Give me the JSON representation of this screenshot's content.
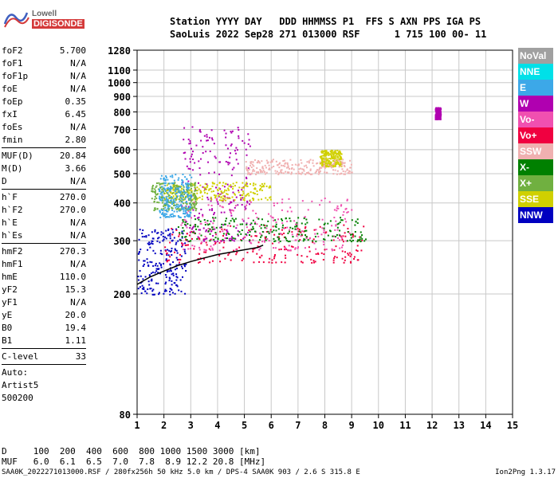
{
  "logo": {
    "line1": "Lowell",
    "line2": "DIGISONDE"
  },
  "header": {
    "row1": "Station YYYY DAY   DDD HHMMSS P1  FFS S AXN PPS IGA PS",
    "row2": "SaoLuis 2022 Sep28 271 013000 RSF      1 715 100 00- 11"
  },
  "params": {
    "group1": [
      {
        "k": "foF2",
        "v": "5.700"
      },
      {
        "k": "foF1",
        "v": "N/A"
      },
      {
        "k": "foF1p",
        "v": "N/A"
      },
      {
        "k": "foE",
        "v": "N/A"
      },
      {
        "k": "foEp",
        "v": "0.35"
      },
      {
        "k": "fxI",
        "v": "6.45"
      },
      {
        "k": "foEs",
        "v": "N/A"
      },
      {
        "k": "fmin",
        "v": "2.80"
      }
    ],
    "group2": [
      {
        "k": "MUF(D)",
        "v": "20.84"
      },
      {
        "k": "M(D)",
        "v": "3.66"
      },
      {
        "k": "D",
        "v": "N/A"
      }
    ],
    "group3": [
      {
        "k": "h`F",
        "v": "270.0"
      },
      {
        "k": "h`F2",
        "v": "270.0"
      },
      {
        "k": "h`E",
        "v": "N/A"
      },
      {
        "k": "h`Es",
        "v": "N/A"
      }
    ],
    "group4": [
      {
        "k": "hmF2",
        "v": "270.3"
      },
      {
        "k": "hmF1",
        "v": "N/A"
      },
      {
        "k": "hmE",
        "v": "110.0"
      },
      {
        "k": "yF2",
        "v": "15.3"
      },
      {
        "k": "yF1",
        "v": "N/A"
      },
      {
        "k": "yE",
        "v": "20.0"
      },
      {
        "k": "B0",
        "v": "19.4"
      },
      {
        "k": "B1",
        "v": "1.11"
      }
    ],
    "group5": [
      {
        "k": "C-level",
        "v": "33"
      }
    ],
    "auto": [
      "Auto:",
      "Artist5",
      "500200"
    ]
  },
  "legend": [
    {
      "label": "NoVal",
      "color": "#a0a0a0"
    },
    {
      "label": "NNE",
      "color": "#00e0e8"
    },
    {
      "label": "E",
      "color": "#3ca8e8"
    },
    {
      "label": "W",
      "color": "#b000b0"
    },
    {
      "label": "Vo-",
      "color": "#f050b0"
    },
    {
      "label": "Vo+",
      "color": "#f00040"
    },
    {
      "label": "SSW",
      "color": "#f0b0b0"
    },
    {
      "label": "X-",
      "color": "#008000"
    },
    {
      "label": "X+",
      "color": "#70b040"
    },
    {
      "label": "SSE",
      "color": "#d0d000"
    },
    {
      "label": "NNW",
      "color": "#0000c0"
    }
  ],
  "bottom": {
    "d_line": "D     100  200  400  600  800 1000 1500 3000 [km]",
    "muf_line": "MUF   6.0  6.1  6.5  7.0  7.8  8.9 12.2 20.8 [MHz]"
  },
  "footer": {
    "left": "SAA0K_2022271013000.RSF / 280fx256h 50 kHz 5.0 km / DPS-4 SAA0K 903 / 2.6 S 315.8 E",
    "right": "Ion2Png 1.3.17"
  },
  "chart_data": {
    "type": "scatter",
    "xlabel": "",
    "ylabel": "",
    "xlim": [
      1,
      15
    ],
    "ylim": [
      80,
      1280
    ],
    "y_scale": "log",
    "x_ticks": [
      1,
      2,
      3,
      4,
      5,
      6,
      7,
      8,
      9,
      10,
      11,
      12,
      13,
      14,
      15
    ],
    "y_ticks": [
      80,
      200,
      300,
      400,
      500,
      600,
      700,
      800,
      900,
      1000,
      1100,
      1280
    ],
    "grid": true,
    "trace": {
      "name": "",
      "points": [
        [
          1.0,
          215
        ],
        [
          1.5,
          228
        ],
        [
          2.0,
          238
        ],
        [
          2.5,
          248
        ],
        [
          3.0,
          256
        ],
        [
          3.5,
          263
        ],
        [
          4.0,
          270
        ],
        [
          4.5,
          275
        ],
        [
          5.0,
          280
        ],
        [
          5.5,
          285
        ],
        [
          5.7,
          290
        ]
      ]
    },
    "clusters": [
      {
        "color": "#0000c0",
        "x": [
          1.0,
          2.8
        ],
        "y": [
          200,
          330
        ]
      },
      {
        "color": "#f00040",
        "x": [
          2.0,
          9.5
        ],
        "y": [
          255,
          340
        ]
      },
      {
        "color": "#f050b0",
        "x": [
          2.6,
          9.0
        ],
        "y": [
          280,
          420
        ]
      },
      {
        "color": "#b000b0",
        "x": [
          2.6,
          5.2
        ],
        "y": [
          300,
          720
        ]
      },
      {
        "color": "#d0d000",
        "x": [
          2.0,
          6.0
        ],
        "y": [
          410,
          470
        ]
      },
      {
        "color": "#70b040",
        "x": [
          1.5,
          3.2
        ],
        "y": [
          380,
          470
        ]
      },
      {
        "color": "#008000",
        "x": [
          2.5,
          9.5
        ],
        "y": [
          300,
          360
        ]
      },
      {
        "color": "#d0d000",
        "x": [
          7.8,
          8.6
        ],
        "y": [
          530,
          600
        ]
      },
      {
        "color": "#f0b0b0",
        "x": [
          5.0,
          9.0
        ],
        "y": [
          500,
          560
        ]
      },
      {
        "color": "#3ca8e8",
        "x": [
          1.8,
          3.0
        ],
        "y": [
          360,
          500
        ]
      },
      {
        "color": "#b000b0",
        "x": [
          12.1,
          12.3
        ],
        "y": [
          760,
          830
        ]
      }
    ]
  }
}
